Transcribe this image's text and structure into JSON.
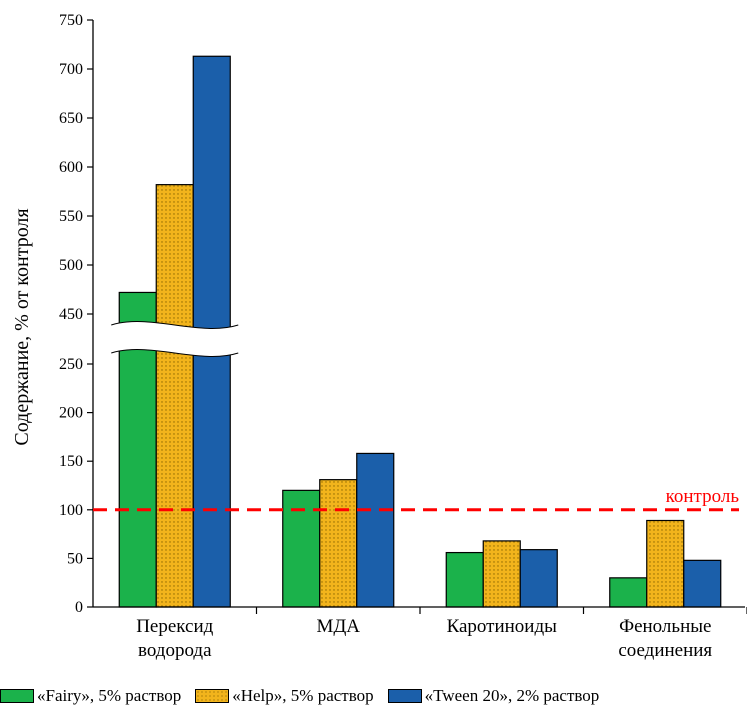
{
  "chart_data": {
    "type": "bar",
    "ylabel": "Содержание, % от контроля",
    "categories": [
      {
        "lines": [
          "Перексид",
          "водорода"
        ]
      },
      {
        "lines": [
          "МДА"
        ]
      },
      {
        "lines": [
          "Каротиноиды"
        ]
      },
      {
        "lines": [
          "Фенольные",
          "соединения"
        ]
      }
    ],
    "series": [
      {
        "name": "«Fairy», 5% раствор",
        "color": "#1bb24b",
        "pattern": "none",
        "values": [
          472,
          120,
          56,
          30
        ]
      },
      {
        "name": "«Help», 5% раствор",
        "color": "#f2b41c",
        "pattern": "dots",
        "values": [
          582,
          131,
          68,
          89
        ]
      },
      {
        "name": "«Tween 20», 2% раствор",
        "color": "#1b5faa",
        "pattern": "none",
        "values": [
          713,
          158,
          59,
          48
        ]
      }
    ],
    "y_ticks": [
      0,
      50,
      100,
      150,
      200,
      250,
      450,
      500,
      550,
      600,
      650,
      700,
      750
    ],
    "y_break": [
      250,
      450
    ],
    "ylim": [
      0,
      750
    ],
    "reference_line": {
      "value": 100,
      "label": "контроль",
      "color": "#ff0000",
      "style": "dashed"
    },
    "grid": false,
    "legend_position": "bottom"
  }
}
